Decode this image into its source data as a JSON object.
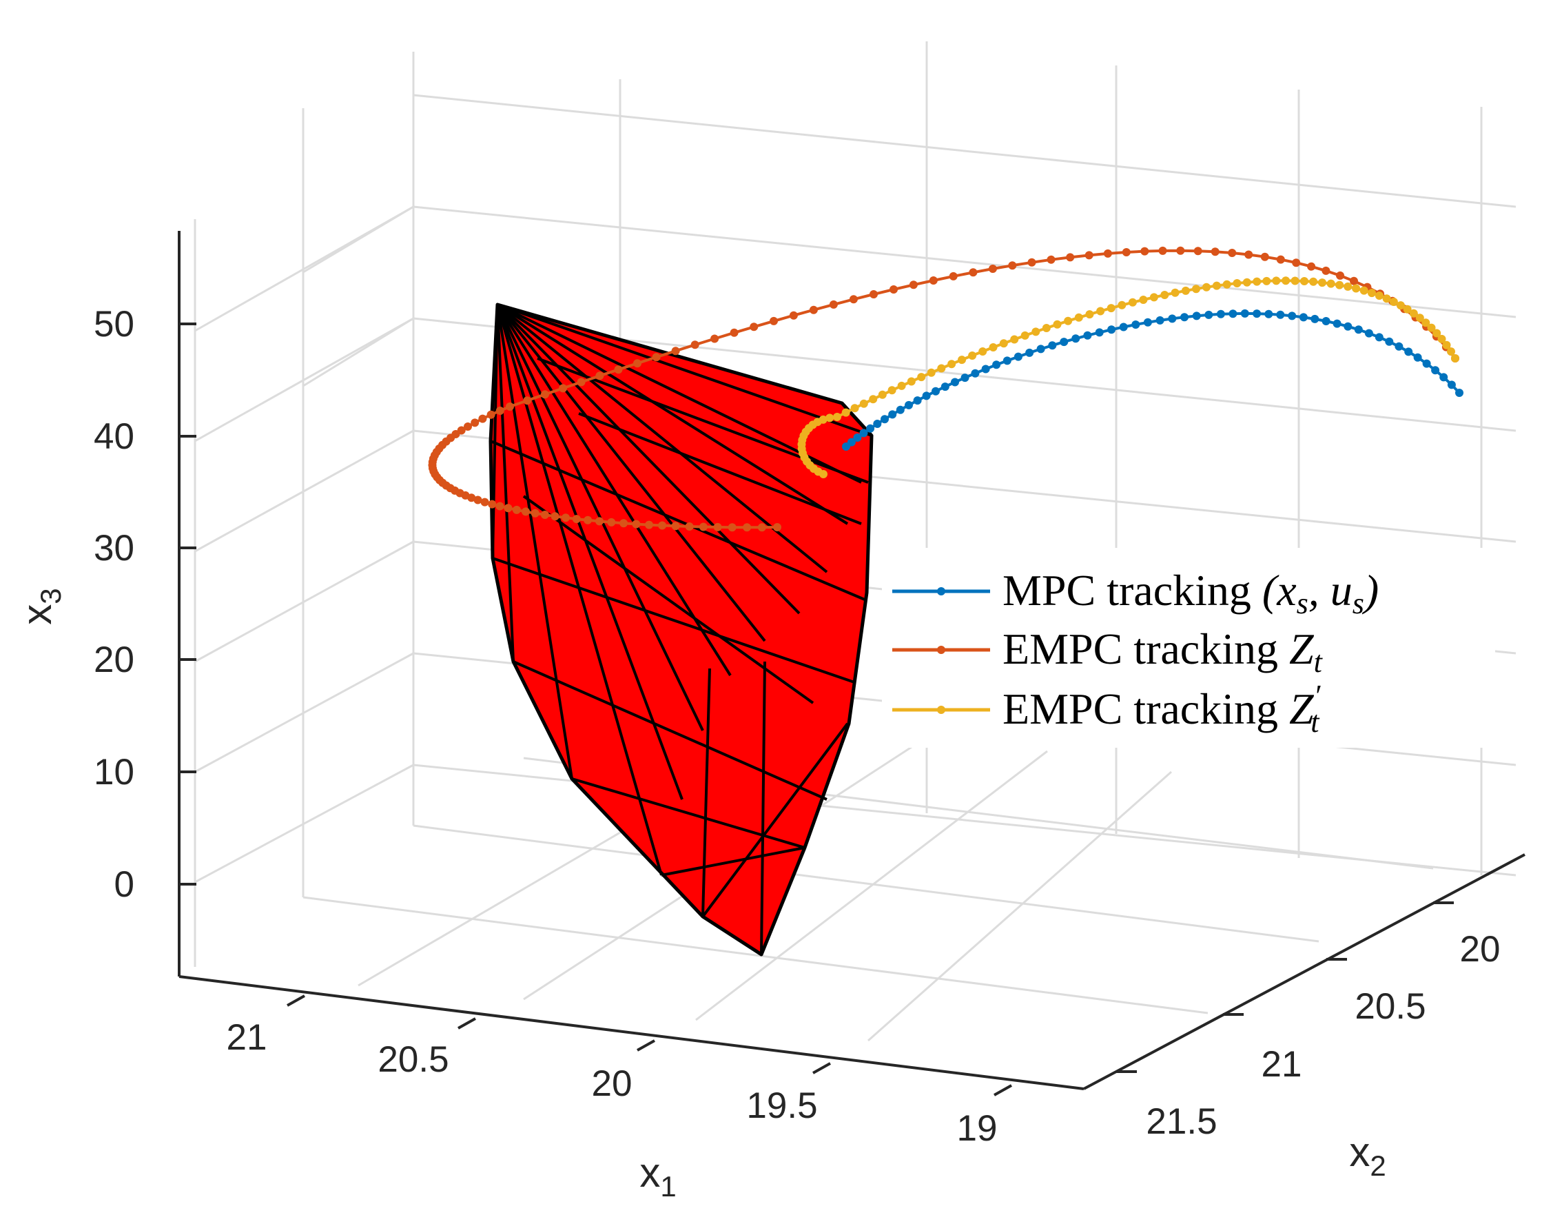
{
  "chart_data": {
    "type": "3d-line-with-surface",
    "title": "",
    "axes": {
      "x1": {
        "label": "x",
        "label_sub": "1",
        "ticks": [
          "21",
          "20.5",
          "20",
          "19.5",
          "19"
        ]
      },
      "x2": {
        "label": "x",
        "label_sub": "2",
        "ticks": [
          "20",
          "20.5",
          "21",
          "21.5"
        ]
      },
      "x3": {
        "label": "x",
        "label_sub": "3",
        "ticks": [
          "0",
          "10",
          "20",
          "30",
          "40",
          "50"
        ],
        "range": [
          -8,
          57
        ]
      }
    },
    "grid": true,
    "legend_position": "right-middle",
    "surface": {
      "name": "terminal-set",
      "color": "#ff0000",
      "edge_color": "#000000"
    },
    "series": [
      {
        "name": "MPC tracking",
        "math": "(x_s, u_s)",
        "color": "#0072bd",
        "marker": "dot",
        "start": {
          "x1": 18.9,
          "x2": 20.1,
          "x3": 43
        },
        "end": {
          "x1": 19.6,
          "x2": 20.8,
          "x3": 40
        }
      },
      {
        "name": "EMPC tracking",
        "math": "Z_t",
        "color": "#d95319",
        "marker": "dot",
        "start": {
          "x1": 18.9,
          "x2": 20.1,
          "x3": 43
        },
        "end": {
          "x1": 20.3,
          "x2": 21.2,
          "x3": 33
        }
      },
      {
        "name": "EMPC tracking",
        "math": "Z'_t",
        "color": "#edb120",
        "marker": "dot",
        "start": {
          "x1": 18.9,
          "x2": 20.1,
          "x3": 43
        },
        "end": {
          "x1": 19.6,
          "x2": 20.9,
          "x3": 38
        }
      }
    ]
  },
  "legend": {
    "entries": [
      {
        "text": "MPC tracking ",
        "math_main": "(x",
        "sub1": "s",
        "math_mid": ", u",
        "sub2": "s",
        "math_end": ")"
      },
      {
        "text": "EMPC tracking ",
        "math_main": "Z",
        "sub1": "t"
      },
      {
        "text": "EMPC tracking ",
        "math_main": "Z",
        "prime": "′",
        "sub1": "t"
      }
    ]
  },
  "colors": {
    "blue": "#0072bd",
    "orange": "#d95319",
    "yellow": "#edb120",
    "surface": "#ff0000",
    "grid": "#dcdcdc",
    "axis": "#262626"
  }
}
